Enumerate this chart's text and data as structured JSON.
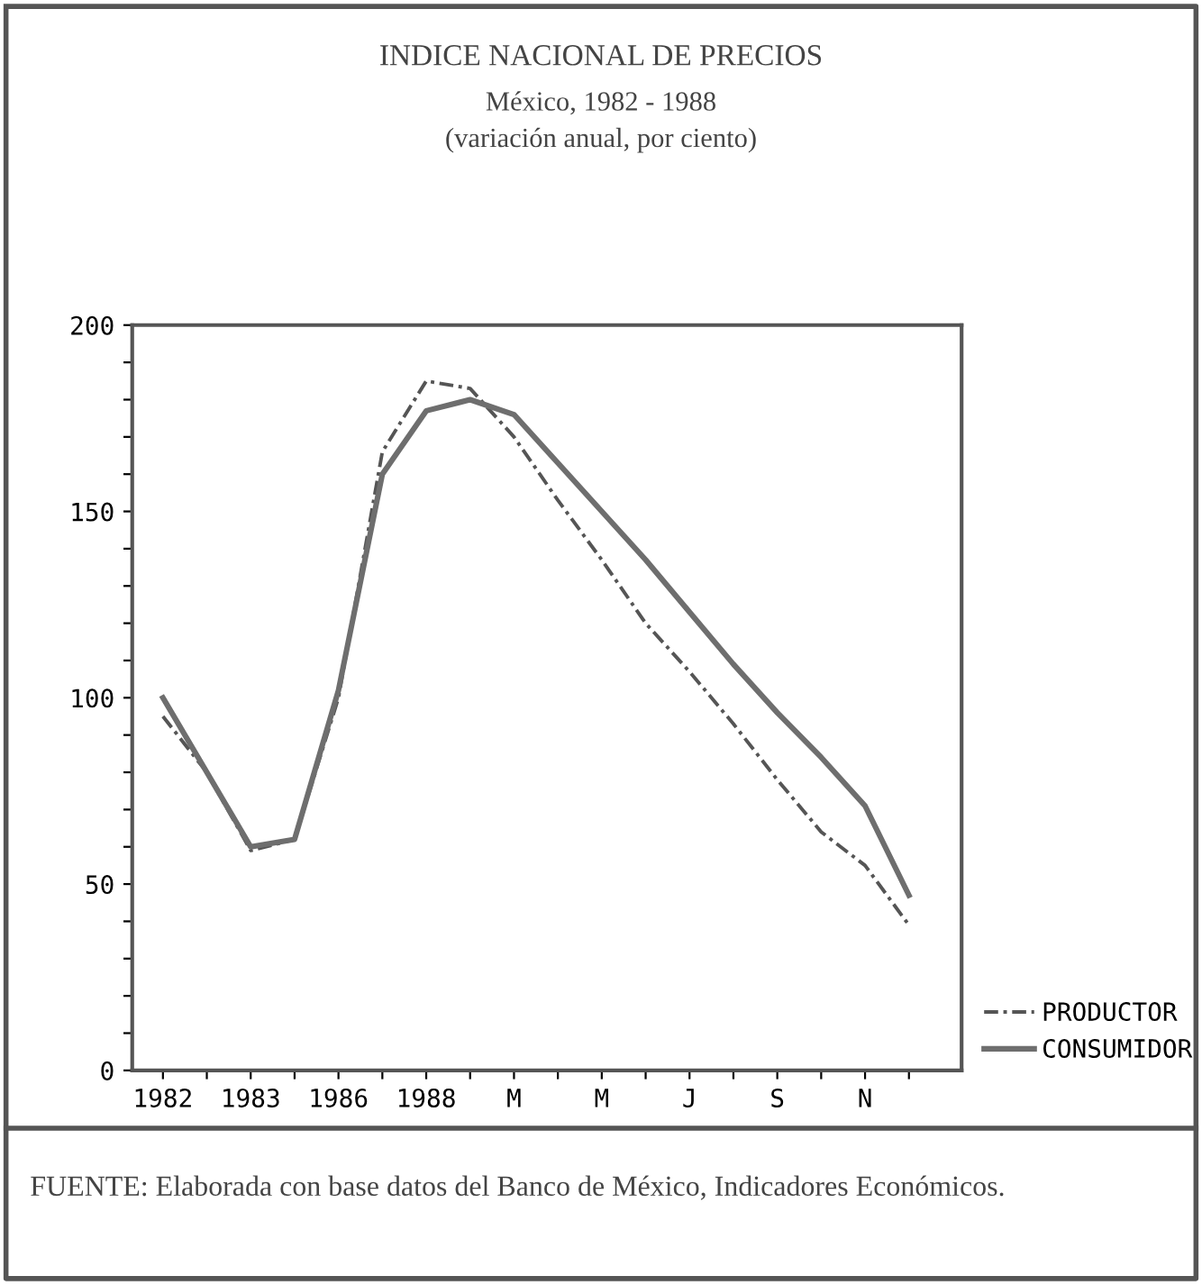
{
  "chart_data": {
    "type": "line",
    "title": "INDICE NACIONAL DE PRECIOS",
    "subtitle": "México, 1982 - 1988\n(variación anual, por ciento)",
    "categories": [
      "1982",
      null,
      "1983",
      null,
      "1986",
      null,
      "1988",
      null,
      "M",
      null,
      "M",
      null,
      "J",
      null,
      "S",
      null,
      "N",
      null
    ],
    "series": [
      {
        "name": "PRODUCTOR",
        "color": "#555555",
        "line_style": "dashed",
        "values": [
          95,
          80,
          59,
          62,
          100,
          166,
          185,
          183,
          170,
          153,
          137,
          120,
          107,
          93,
          78,
          64,
          55,
          39
        ]
      },
      {
        "name": "CONSUMIDOR",
        "color": "#6e6e6e",
        "line_style": "solid",
        "values": [
          100,
          80,
          60,
          62,
          102,
          160,
          177,
          180,
          176,
          163,
          150,
          137,
          123,
          109,
          96,
          84,
          71,
          47
        ]
      }
    ],
    "ylim": [
      0,
      200
    ],
    "yticks": [
      0,
      {
        "value": 10,
        "label": null
      },
      {
        "value": 20,
        "label": null
      },
      {
        "value": 30,
        "label": null
      },
      {
        "value": 40,
        "label": null
      },
      50,
      {
        "value": 60,
        "label": null
      },
      {
        "value": 70,
        "label": null
      },
      {
        "value": 80,
        "label": null
      },
      {
        "value": 90,
        "label": null
      },
      100,
      {
        "value": 110,
        "label": null
      },
      {
        "value": 120,
        "label": null
      },
      {
        "value": 130,
        "label": null
      },
      {
        "value": 140,
        "label": null
      },
      150,
      {
        "value": 160,
        "label": null
      },
      {
        "value": 170,
        "label": null
      },
      {
        "value": 180,
        "label": null
      },
      {
        "value": 190,
        "label": null
      },
      200
    ],
    "grid": false,
    "legend": "bottom right",
    "annotations": [
      "FUENTE: Elaborada con base datos del Banco de México, Indicadores Económicos."
    ]
  }
}
